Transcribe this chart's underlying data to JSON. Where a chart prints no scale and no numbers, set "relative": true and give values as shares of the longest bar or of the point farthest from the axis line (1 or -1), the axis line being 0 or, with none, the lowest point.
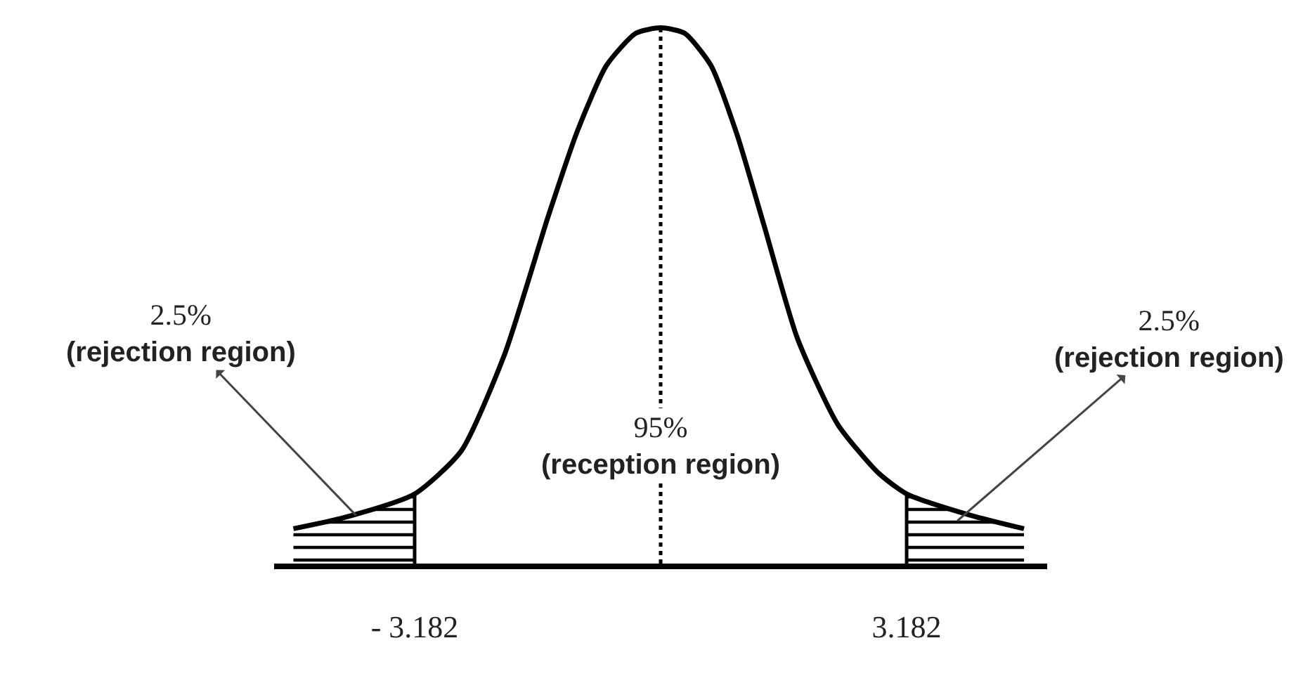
{
  "chart_data": {
    "type": "line",
    "relative": true,
    "x": [
      -4.75,
      -4.09,
      -3.182,
      -2.58,
      -2.02,
      -1.45,
      -1.07,
      -0.7,
      -0.32,
      0,
      0.31,
      0.65,
      0.99,
      1.34,
      1.77,
      2.29,
      2.81,
      3.182,
      4.01,
      4.7
    ],
    "series": [
      {
        "color": "#000000",
        "values": [
          0.065,
          0.086,
          0.13,
          0.21,
          0.39,
          0.65,
          0.81,
          0.93,
          0.99,
          1,
          0.99,
          0.93,
          0.8,
          0.63,
          0.42,
          0.26,
          0.17,
          0.13,
          0.09,
          0.065
        ]
      },
      {
        "type": "area",
        "color": "#000000",
        "x": [
          -4.75,
          -4.09,
          -3.182
        ],
        "values": [
          0.065,
          0.086,
          0.13
        ]
      },
      {
        "type": "area",
        "color": "#000000",
        "x": [
          3.182,
          4.01,
          4.7
        ],
        "values": [
          0.13,
          0.09,
          0.065
        ]
      }
    ],
    "xlim": [
      -5,
      5
    ],
    "xticks": [
      {
        "value": -3.182,
        "label": "- 3.182"
      },
      3.182
    ],
    "tick_labels": "x",
    "marker": "none",
    "ref_lines": [
      {
        "axis": "x",
        "value": -3.182,
        "line_style": "solid"
      },
      {
        "axis": "x",
        "value": 0,
        "line_style": "dotted"
      },
      {
        "axis": "x",
        "value": 3.182,
        "line_style": "solid"
      }
    ],
    "annotations": [
      {
        "text": "2.5%\n(rejection region)",
        "x": -3.94,
        "y": 0.09
      },
      {
        "text": "95%\n(reception region)",
        "x": 0,
        "y": 0.22
      },
      {
        "text": "2.5%\n(rejection region)",
        "x": 3.84,
        "y": 0.08
      }
    ]
  }
}
